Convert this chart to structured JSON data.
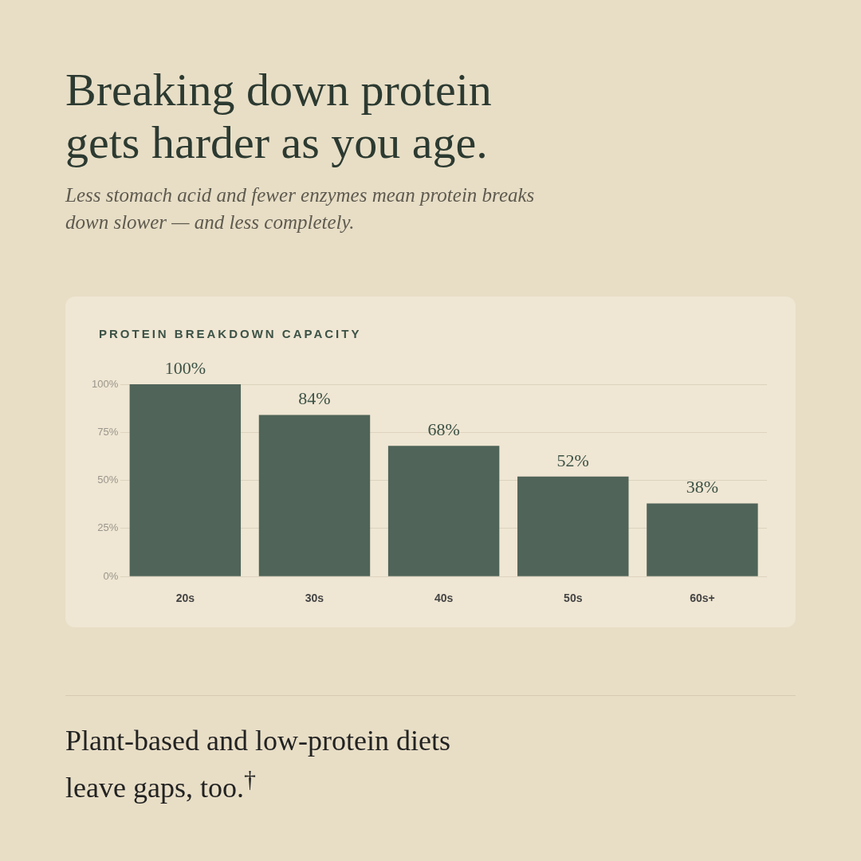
{
  "chart_data": {
    "type": "bar",
    "title": "Breaking down protein gets harder as you age.",
    "subtitle": "Less stomach acid and fewer enzymes mean protein breaks down slower — and less completely.",
    "annotations": [
      "PROTEIN BREAKDOWN CAPACITY",
      "Plant-based and low-protein diets leave gaps, too.$^{†}$"
    ],
    "categories": [
      "20s",
      "30s",
      "40s",
      "50s",
      "60s+"
    ],
    "values": [
      100,
      84,
      68,
      52,
      38
    ],
    "color": "#506459",
    "value_labels": [
      "100%",
      "84%",
      "68%",
      "52%",
      "38%"
    ],
    "ylim": [
      0,
      100
    ],
    "yticks": [
      {
        "value": 0,
        "label": "0%"
      },
      {
        "value": 25,
        "label": "25%"
      },
      {
        "value": 50,
        "label": "50%"
      },
      {
        "value": 75,
        "label": "75%"
      },
      {
        "value": 100,
        "label": "100%"
      }
    ],
    "grid": "y",
    "legend": false
  }
}
